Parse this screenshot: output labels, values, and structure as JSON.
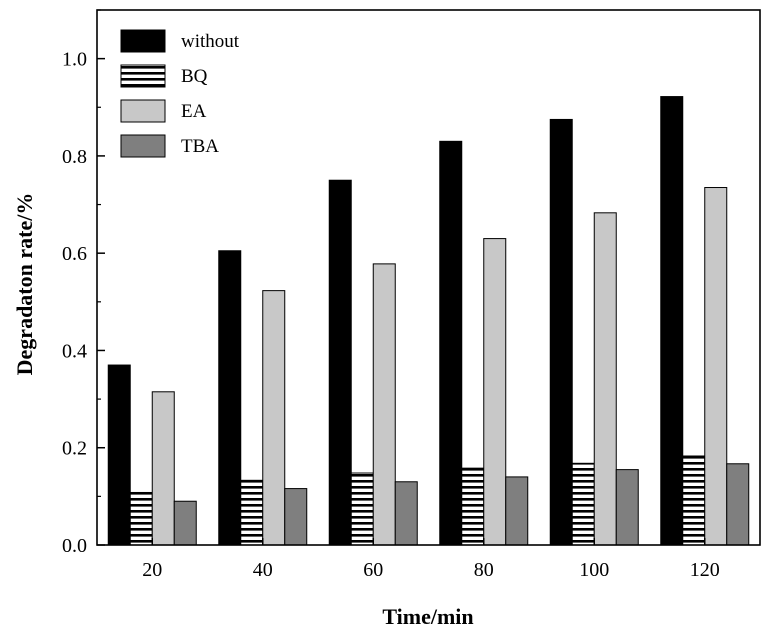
{
  "chart_data": {
    "type": "bar",
    "xlabel": "Time/min",
    "ylabel": "Degradaton rate/%",
    "categories": [
      "20",
      "40",
      "60",
      "80",
      "100",
      "120"
    ],
    "ylim": [
      0,
      1.1
    ],
    "yticks": [
      "0.0",
      "0.2",
      "0.4",
      "0.6",
      "0.8",
      "1.0"
    ],
    "grid": false,
    "legend_position": "top-left",
    "series": [
      {
        "name": "without",
        "fill": "#000000",
        "pattern": "solid",
        "values": [
          0.37,
          0.605,
          0.75,
          0.83,
          0.875,
          0.922
        ]
      },
      {
        "name": "BQ",
        "fill": "#ffffff",
        "pattern": "horizontal-hatch",
        "values": [
          0.108,
          0.133,
          0.148,
          0.158,
          0.168,
          0.183
        ]
      },
      {
        "name": "EA",
        "fill": "#c8c8c8",
        "pattern": "solid",
        "values": [
          0.315,
          0.523,
          0.578,
          0.63,
          0.683,
          0.735
        ]
      },
      {
        "name": "TBA",
        "fill": "#7f7f7f",
        "pattern": "solid",
        "values": [
          0.09,
          0.116,
          0.13,
          0.14,
          0.155,
          0.167
        ]
      }
    ]
  }
}
